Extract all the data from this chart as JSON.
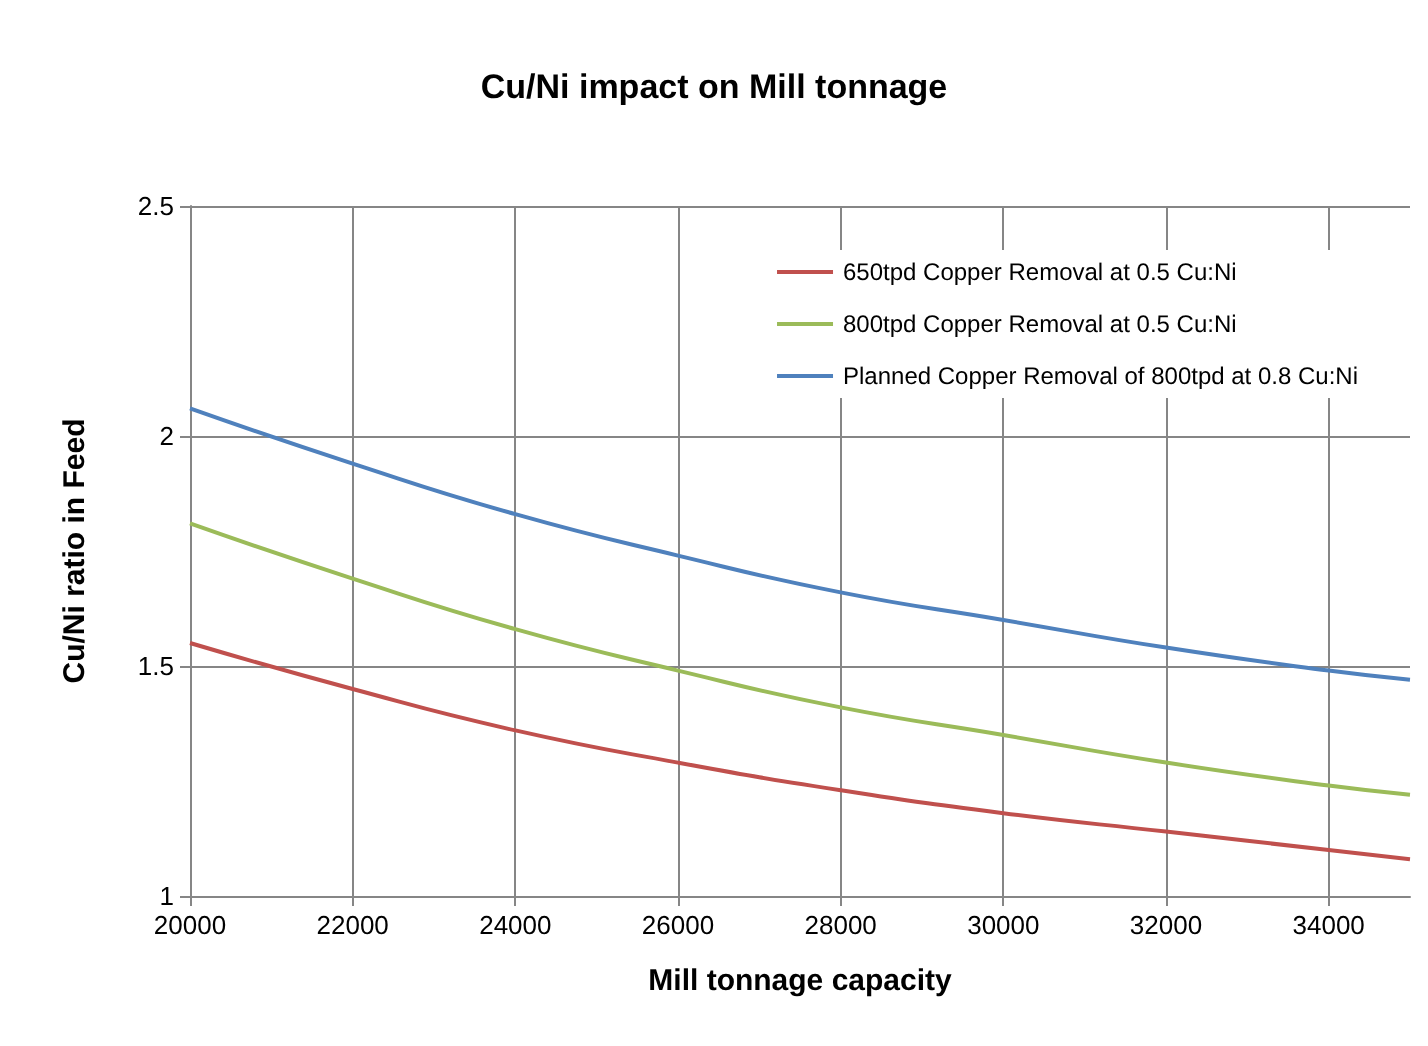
{
  "chart_data": {
    "type": "line",
    "title": "Cu/Ni impact on Mill tonnage",
    "xlabel": "Mill tonnage capacity",
    "ylabel": "Cu/Ni ratio in Feed",
    "x": [
      20000,
      22000,
      24000,
      26000,
      28000,
      30000,
      32000,
      34000,
      35000
    ],
    "series": [
      {
        "name": "650tpd Copper Removal at 0.5 Cu:Ni",
        "color": "#c0504d",
        "values": [
          1.55,
          1.45,
          1.36,
          1.29,
          1.23,
          1.18,
          1.14,
          1.1,
          1.08
        ]
      },
      {
        "name": "800tpd Copper Removal at 0.5 Cu:Ni",
        "color": "#9bbb59",
        "values": [
          1.81,
          1.69,
          1.58,
          1.49,
          1.41,
          1.35,
          1.29,
          1.24,
          1.22
        ]
      },
      {
        "name": "Planned Copper Removal of 800tpd at 0.8 Cu:Ni",
        "color": "#4f81bd",
        "values": [
          2.06,
          1.94,
          1.83,
          1.74,
          1.66,
          1.6,
          1.54,
          1.49,
          1.47
        ]
      }
    ],
    "xlim": [
      20000,
      35000
    ],
    "xticks": [
      20000,
      22000,
      24000,
      26000,
      28000,
      30000,
      32000,
      34000
    ],
    "ylim": [
      1,
      2.5
    ],
    "yticks": [
      1,
      1.5,
      2,
      2.5
    ],
    "grid": true,
    "legend": "top right",
    "marker": "none",
    "line_style": "solid"
  }
}
